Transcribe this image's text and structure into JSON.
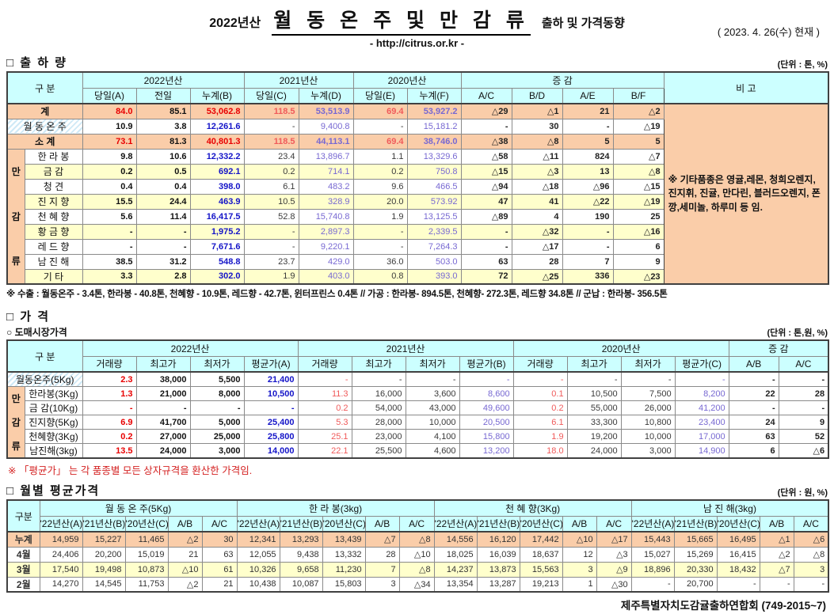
{
  "title": {
    "year": "2022년산",
    "main": "월 동 온 주 및 만 감 류",
    "suffix": "출하 및 가격동향",
    "url": "- http://citrus.or.kr -",
    "date": "( 2023.  4. 26(수) 현재 )"
  },
  "footer": "제주특별자치도감귤출하연합회 (749-2015~7)",
  "shipment": {
    "section_label": "□ 출 하 량",
    "unit": "(단위 : 톤, %)",
    "gubun": "구        분",
    "groups": [
      {
        "label": "2022년산",
        "span": 3
      },
      {
        "label": "2021년산",
        "span": 2
      },
      {
        "label": "2020년산",
        "span": 2
      },
      {
        "label": "증        감",
        "span": 4
      }
    ],
    "cols": [
      "당일(A)",
      "전일",
      "누계(B)",
      "당일(C)",
      "누계(D)",
      "당일(E)",
      "누계(F)",
      "A/C",
      "B/D",
      "A/E",
      "B/F"
    ],
    "note_label": "비 고",
    "note": "※ 기타품종은 영귤,레몬, 청희오렌지, 진지휘, 진귤, 만다린, 블러드오렌지, 폰깡,세미놀, 하루미 등 임.",
    "group_label": "만감류",
    "rows": [
      {
        "label": "계",
        "kind": "total",
        "cells": [
          "84.0",
          "85.1",
          "53,062.8",
          "118.5",
          "53,513.9",
          "69.4",
          "53,927.2",
          "△29",
          "△1",
          "21",
          "△2"
        ]
      },
      {
        "label": "월 동 온 주",
        "kind": "winter",
        "cells": [
          "10.9",
          "3.8",
          "12,261.6",
          "-",
          "9,400.8",
          "-",
          "15,181.2",
          "-",
          "30",
          "-",
          "△19"
        ]
      },
      {
        "label": "소    계",
        "kind": "total",
        "cells": [
          "73.1",
          "81.3",
          "40,801.3",
          "118.5",
          "44,113.1",
          "69.4",
          "38,746.0",
          "△38",
          "△8",
          "5",
          "5"
        ]
      },
      {
        "label": "한 라 봉",
        "kind": "w",
        "cells": [
          "9.8",
          "10.6",
          "12,332.2",
          "23.4",
          "13,896.7",
          "1.1",
          "13,329.6",
          "△58",
          "△11",
          "824",
          "△7"
        ]
      },
      {
        "label": "금    감",
        "kind": "y",
        "cells": [
          "0.2",
          "0.5",
          "692.1",
          "0.2",
          "714.1",
          "0.2",
          "750.8",
          "△15",
          "△3",
          "13",
          "△8"
        ]
      },
      {
        "label": "청    견",
        "kind": "w",
        "cells": [
          "0.4",
          "0.4",
          "398.0",
          "6.1",
          "483.2",
          "9.6",
          "466.5",
          "△94",
          "△18",
          "△96",
          "△15"
        ]
      },
      {
        "label": "진 지 향",
        "kind": "y",
        "cells": [
          "15.5",
          "24.4",
          "463.9",
          "10.5",
          "328.9",
          "20.0",
          "573.92",
          "47",
          "41",
          "△22",
          "△19"
        ]
      },
      {
        "label": "천 혜 향",
        "kind": "w",
        "cells": [
          "5.6",
          "11.4",
          "16,417.5",
          "52.8",
          "15,740.8",
          "1.9",
          "13,125.5",
          "△89",
          "4",
          "190",
          "25"
        ]
      },
      {
        "label": "황 금 향",
        "kind": "y",
        "cells": [
          "-",
          "-",
          "1,975.2",
          "-",
          "2,897.3",
          "-",
          "2,339.5",
          "-",
          "△32",
          "-",
          "△16"
        ]
      },
      {
        "label": "레 드 향",
        "kind": "w",
        "cells": [
          "-",
          "-",
          "7,671.6",
          "-",
          "9,220.1",
          "-",
          "7,264.3",
          "-",
          "△17",
          "-",
          "6"
        ]
      },
      {
        "label": "남 진 해",
        "kind": "w",
        "cells": [
          "38.5",
          "31.2",
          "548.8",
          "23.7",
          "429.0",
          "36.0",
          "503.0",
          "63",
          "28",
          "7",
          "9"
        ]
      },
      {
        "label": "기    타",
        "kind": "y",
        "cells": [
          "3.3",
          "2.8",
          "302.0",
          "1.9",
          "403.0",
          "0.8",
          "393.0",
          "72",
          "△25",
          "336",
          "△23"
        ]
      }
    ],
    "footnote": "※ 수출 : 월동온주 - 3.4톤, 한라봉 - 40.8톤, 천혜향 - 10.9톤, 레드향 - 42.7톤, 윈터프린스 0.4톤 //  가공  : 한라봉- 894.5톤, 천혜향- 272.3톤, 레드향 34.8톤  //  군납 : 한라봉- 356.5톤"
  },
  "price": {
    "section_label": "□ 가      격",
    "sub_label": "○ 도매시장가격",
    "unit": "(단위 : 톤,원, %)",
    "gubun": "구        분",
    "groups": [
      {
        "label": "2022년산",
        "span": 4
      },
      {
        "label": "2021년산",
        "span": 4
      },
      {
        "label": "2020년산",
        "span": 4
      },
      {
        "label": "증     감",
        "span": 2
      }
    ],
    "cols": [
      "거래량",
      "최고가",
      "최저가",
      "평균가(A)",
      "거래량",
      "최고가",
      "최저가",
      "평균가(B)",
      "거래량",
      "최고가",
      "최저가",
      "평균가(C)",
      "A/B",
      "A/C"
    ],
    "group_label": "만감류",
    "rows": [
      {
        "label": "월동온주(5Kg)",
        "kind": "winter",
        "cells": [
          "2.3",
          "38,000",
          "5,500",
          "21,400",
          "-",
          "-",
          "-",
          "-",
          "-",
          "-",
          "-",
          "-",
          "-",
          "-"
        ]
      },
      {
        "label": "한라봉(3Kg)",
        "kind": "w",
        "cells": [
          "1.3",
          "21,000",
          "8,000",
          "10,500",
          "11.3",
          "16,000",
          "3,600",
          "8,600",
          "0.1",
          "10,500",
          "7,500",
          "8,200",
          "22",
          "28"
        ]
      },
      {
        "label": "금 감(10Kg)",
        "kind": "w",
        "cells": [
          "-",
          "-",
          "-",
          "-",
          "0.2",
          "54,000",
          "43,000",
          "49,600",
          "0.2",
          "55,000",
          "26,000",
          "41,200",
          "-",
          "-"
        ]
      },
      {
        "label": "진지향(5Kg)",
        "kind": "w",
        "cells": [
          "6.9",
          "41,700",
          "5,000",
          "25,400",
          "5.3",
          "28,000",
          "10,000",
          "20,500",
          "6.1",
          "33,300",
          "10,800",
          "23,400",
          "24",
          "9"
        ]
      },
      {
        "label": "천혜향(3Kg)",
        "kind": "w",
        "cells": [
          "0.2",
          "27,000",
          "25,000",
          "25,800",
          "25.1",
          "23,000",
          "4,100",
          "15,800",
          "1.9",
          "19,200",
          "10,000",
          "17,000",
          "63",
          "52"
        ]
      },
      {
        "label": "남진해(3kg)",
        "kind": "w",
        "cells": [
          "13.5",
          "24,000",
          "3,000",
          "14,000",
          "22.1",
          "25,500",
          "4,600",
          "13,200",
          "18.0",
          "24,000",
          "3,000",
          "14,900",
          "6",
          "△6"
        ]
      }
    ],
    "footnote": "※  「평균가」 는 각 품종별 모든 상자규격을 환산한 가격임."
  },
  "monthly": {
    "section_label": "□ 월별 평균가격",
    "unit": "(단위 : 원, %)",
    "gubun": "구분",
    "groups": [
      {
        "label": "월 동 온 주(5Kg)",
        "span": 5
      },
      {
        "label": "한  라  봉(3kg)",
        "span": 5
      },
      {
        "label": "천 혜 향(3Kg)",
        "span": 5
      },
      {
        "label": "남 진 해(3kg)",
        "span": 5
      }
    ],
    "cols": [
      "'22년산(A)",
      "'21년산(B)",
      "'20년산(C)",
      "A/B",
      "A/C",
      "'22년산(A)",
      "'21년산(B)",
      "'20년산(C)",
      "A/B",
      "A/C",
      "'22년산(A)",
      "'21년산(B)",
      "'20년산(C)",
      "A/B",
      "A/C",
      "'22년산(A)",
      "'21년산(B)",
      "'20년산(C)",
      "A/B",
      "A/C"
    ],
    "rows": [
      {
        "label": "누계",
        "kind": "total",
        "cells": [
          "14,959",
          "15,227",
          "11,465",
          "△2",
          "30",
          "12,341",
          "13,293",
          "13,439",
          "△7",
          "△8",
          "14,556",
          "16,120",
          "17,442",
          "△10",
          "△17",
          "15,443",
          "15,665",
          "16,495",
          "△1",
          "△6"
        ]
      },
      {
        "label": "4월",
        "kind": "w",
        "cells": [
          "24,406",
          "20,200",
          "15,019",
          "21",
          "63",
          "12,055",
          "9,438",
          "13,332",
          "28",
          "△10",
          "18,025",
          "16,039",
          "18,637",
          "12",
          "△3",
          "15,027",
          "15,269",
          "16,415",
          "△2",
          "△8"
        ]
      },
      {
        "label": "3월",
        "kind": "y",
        "cells": [
          "17,540",
          "19,498",
          "10,873",
          "△10",
          "61",
          "10,326",
          "9,658",
          "11,230",
          "7",
          "△8",
          "14,237",
          "13,873",
          "15,563",
          "3",
          "△9",
          "18,896",
          "20,330",
          "18,432",
          "△7",
          "3"
        ]
      },
      {
        "label": "2월",
        "kind": "w",
        "cells": [
          "14,270",
          "14,545",
          "11,753",
          "△2",
          "21",
          "10,438",
          "10,087",
          "15,803",
          "3",
          "△34",
          "13,354",
          "13,287",
          "19,213",
          "1",
          "△30",
          "-",
          "20,700",
          "-",
          "-",
          "-"
        ]
      }
    ]
  }
}
